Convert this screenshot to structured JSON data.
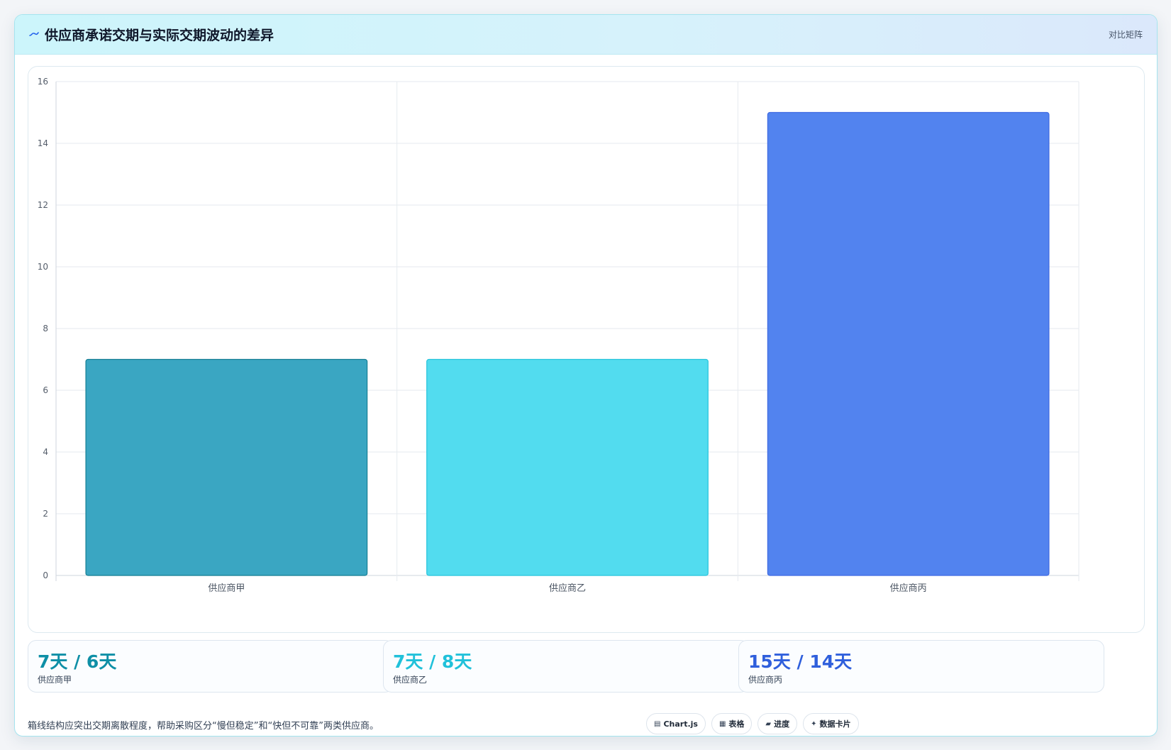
{
  "header": {
    "title": "供应商承诺交期与实际交期波动的差异",
    "icon": "wave-line-icon",
    "tag": "对比矩阵"
  },
  "chart_data": {
    "type": "bar",
    "categories": [
      "供应商甲",
      "供应商乙",
      "供应商丙"
    ],
    "values": [
      7,
      7,
      15
    ],
    "colors": [
      "#3aa6c2",
      "#52dcef",
      "#5283ef"
    ],
    "border_colors": [
      "#157e93",
      "#26c4dc",
      "#3f6ae2"
    ],
    "ylim": [
      0,
      16
    ],
    "yticks": [
      "0",
      "2",
      "4",
      "6",
      "8",
      "10",
      "12",
      "14",
      "16"
    ],
    "grid": true,
    "legend": "none"
  },
  "stats": [
    {
      "value": "7天 / 6天",
      "label": "供应商甲",
      "color": "#0e8fa6"
    },
    {
      "value": "7天 / 8天",
      "label": "供应商乙",
      "color": "#21c1da"
    },
    {
      "value": "15天 / 14天",
      "label": "供应商丙",
      "color": "#2f5fdc"
    }
  ],
  "footer": {
    "note": "箱线结构应突出交期离散程度，帮助采购区分“慢但稳定”和“快但不可靠”两类供应商。",
    "pills": [
      {
        "icon": "chart-icon",
        "glyph": "▤",
        "label": "Chart.js"
      },
      {
        "icon": "table-icon",
        "glyph": "▦",
        "label": "表格"
      },
      {
        "icon": "progress-icon",
        "glyph": "▰",
        "label": "进度"
      },
      {
        "icon": "sparkle-icon",
        "glyph": "✦",
        "label": "数据卡片"
      }
    ]
  }
}
